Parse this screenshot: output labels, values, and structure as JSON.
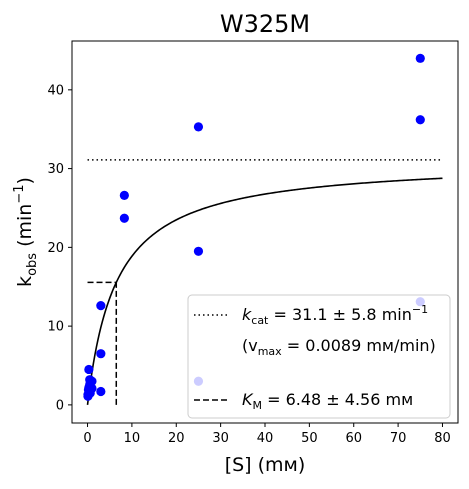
{
  "chart_data": {
    "type": "scatter",
    "title": "W325M",
    "xlabel": "[S] (mᴍ)",
    "ylabel": "k_obs (min^-1)",
    "xlim": [
      -3.5,
      83.5
    ],
    "ylim": [
      -2.3,
      46.2
    ],
    "xticks": [
      0,
      10,
      20,
      30,
      40,
      50,
      60,
      70,
      80
    ],
    "yticks": [
      0,
      10,
      20,
      30,
      40
    ],
    "grid": false,
    "legend_position": "lower-right",
    "series": [
      {
        "kind": "points",
        "color": "#0000ff",
        "x": [
          0.1,
          0.1,
          0.2,
          0.3,
          0.3,
          0.5,
          0.5,
          0.6,
          1.0,
          1.0,
          3.0,
          3.0,
          3.0,
          8.3,
          8.3,
          25,
          25,
          25,
          75,
          75,
          75
        ],
        "y": [
          1.1,
          1.3,
          1.9,
          2.2,
          4.5,
          3.2,
          2.6,
          1.5,
          2.1,
          3.0,
          1.7,
          6.5,
          12.6,
          26.6,
          23.7,
          35.3,
          19.5,
          3.0,
          44.0,
          36.2,
          13.1
        ]
      },
      {
        "kind": "fit",
        "color": "#000000",
        "model": "Michaelis-Menten",
        "kcat": 31.1,
        "km": 6.48,
        "x_range": [
          0,
          80
        ]
      }
    ],
    "reference_lines": [
      {
        "kind": "kcat-line",
        "style": "dotted",
        "y": 31.1,
        "x_range": [
          0,
          80
        ]
      },
      {
        "kind": "half-kcat-line",
        "style": "dashed",
        "y": 15.55,
        "x_range": [
          0,
          6.48
        ]
      },
      {
        "kind": "km-line",
        "style": "dashed",
        "x": 6.48,
        "y_range": [
          0,
          15.55
        ]
      }
    ],
    "legend": {
      "kcat_base": "k",
      "kcat_sub": "cat",
      "kcat_value": " = 31.1 ± 5.8 min",
      "kcat_sup": "−1",
      "vmax_open": "(v",
      "vmax_sub": "max",
      "vmax_value": " = 0.0089 mᴍ/min)",
      "km_base": "K",
      "km_sub": "M",
      "km_value": " = 6.48 ± 4.56 mᴍ"
    },
    "axis_text": {
      "x_main": "[S] (mᴍ)",
      "y_base": "k",
      "y_sub": "obs",
      "y_unit_open": " (min",
      "y_sup": "−1",
      "y_unit_close": ")"
    }
  }
}
